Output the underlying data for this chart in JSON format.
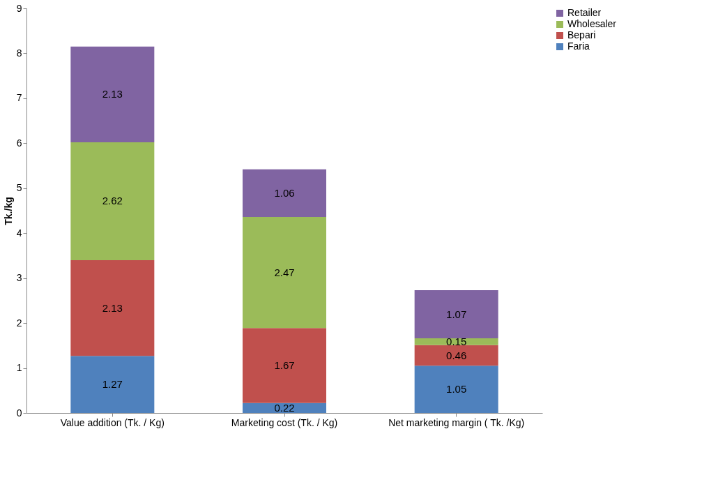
{
  "chart_data": {
    "type": "bar",
    "stacked": true,
    "ylabel": "Tk./kg",
    "categories": [
      "Value addition  (Tk. / Kg)",
      "Marketing cost  (Tk. / Kg)",
      "Net marketing margin ( Tk. /Kg)"
    ],
    "series": [
      {
        "name": "Faria",
        "color": "#4f81bd",
        "values": [
          1.27,
          0.22,
          1.05
        ]
      },
      {
        "name": "Bepari",
        "color": "#c0504d",
        "values": [
          2.13,
          1.67,
          0.46
        ]
      },
      {
        "name": "Wholesaler",
        "color": "#9bbb59",
        "values": [
          2.62,
          2.47,
          0.15
        ]
      },
      {
        "name": "Retailer",
        "color": "#8064a2",
        "values": [
          2.13,
          1.06,
          1.07
        ]
      }
    ],
    "ylim": [
      0,
      9
    ],
    "yticks": [
      0,
      1,
      2,
      3,
      4,
      5,
      6,
      7,
      8,
      9
    ],
    "grid": false,
    "legend": "right",
    "data_labels": true
  }
}
